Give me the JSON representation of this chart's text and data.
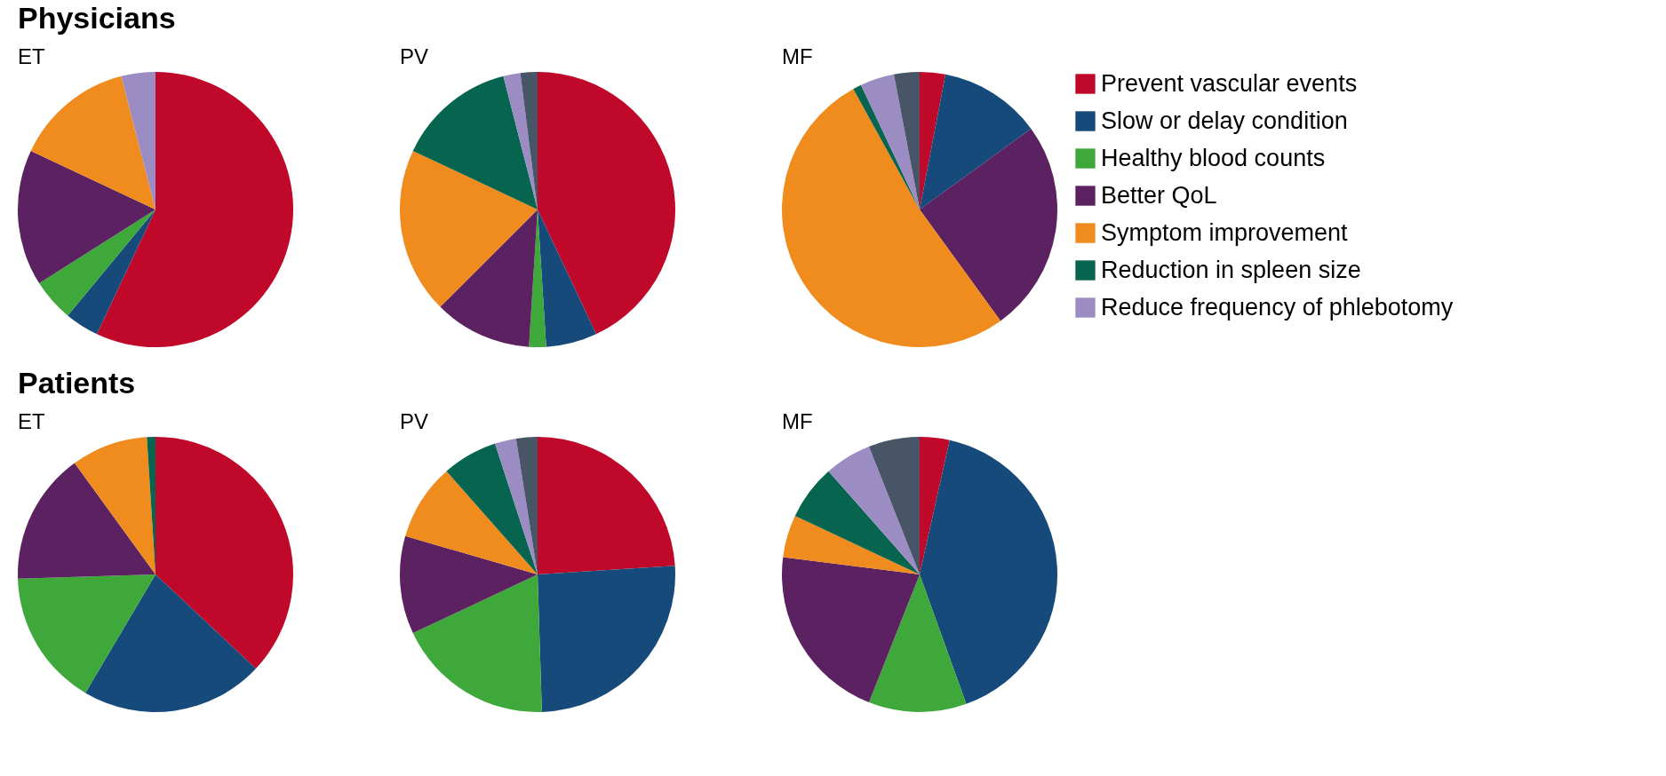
{
  "chart_data": [
    {
      "type": "pie",
      "title": "ET",
      "annotations": [
        "Physicians"
      ],
      "legend": "right",
      "categories": [
        "Prevent vascular events",
        "Slow or delay condition",
        "Healthy blood counts",
        "Better QoL",
        "Symptom improvement",
        "Reduction in spleen size",
        "Reduce frequency of phlebotomy",
        null
      ],
      "values": [
        57,
        4,
        5,
        16,
        14,
        0,
        4,
        0
      ],
      "colors": [
        "#c0092a",
        "#154a7a",
        "#3ea83a",
        "#5b2160",
        "#f08c1e",
        "#07654f",
        "#9b8dc4",
        "#475566"
      ]
    },
    {
      "type": "pie",
      "title": "PV",
      "categories": [
        null,
        null,
        null,
        null,
        null,
        null,
        null,
        null
      ],
      "values": [
        43,
        6,
        2,
        11.5,
        19.5,
        14,
        2,
        2
      ],
      "colors": [
        "#c0092a",
        "#154a7a",
        "#3ea83a",
        "#5b2160",
        "#f08c1e",
        "#07654f",
        "#9b8dc4",
        "#475566"
      ]
    },
    {
      "type": "pie",
      "title": "MF",
      "categories": [
        null,
        null,
        null,
        null,
        null,
        null,
        null,
        null
      ],
      "values": [
        3,
        12,
        0,
        25,
        52,
        1,
        4,
        3
      ],
      "colors": [
        "#c0092a",
        "#154a7a",
        "#3ea83a",
        "#5b2160",
        "#f08c1e",
        "#07654f",
        "#9b8dc4",
        "#475566"
      ]
    },
    {
      "type": "pie",
      "title": "ET",
      "annotations": [
        "Patients"
      ],
      "categories": [
        null,
        null,
        null,
        null,
        null,
        null,
        null,
        null
      ],
      "values": [
        37,
        21.5,
        16,
        15.5,
        9,
        1,
        0,
        0
      ],
      "colors": [
        "#c0092a",
        "#154a7a",
        "#3ea83a",
        "#5b2160",
        "#f08c1e",
        "#07654f",
        "#9b8dc4",
        "#475566"
      ]
    },
    {
      "type": "pie",
      "title": "PV",
      "categories": [
        null,
        null,
        null,
        null,
        null,
        null,
        null,
        null
      ],
      "values": [
        24,
        25.5,
        18.5,
        11.5,
        9,
        6.5,
        2.5,
        2.5
      ],
      "colors": [
        "#c0092a",
        "#154a7a",
        "#3ea83a",
        "#5b2160",
        "#f08c1e",
        "#07654f",
        "#9b8dc4",
        "#475566"
      ]
    },
    {
      "type": "pie",
      "title": "MF",
      "categories": [
        null,
        null,
        null,
        null,
        null,
        null,
        null,
        null
      ],
      "values": [
        3.5,
        41,
        11.5,
        21,
        5,
        6.5,
        5.5,
        6
      ],
      "colors": [
        "#c0092a",
        "#154a7a",
        "#3ea83a",
        "#5b2160",
        "#f08c1e",
        "#07654f",
        "#9b8dc4",
        "#475566"
      ]
    }
  ]
}
